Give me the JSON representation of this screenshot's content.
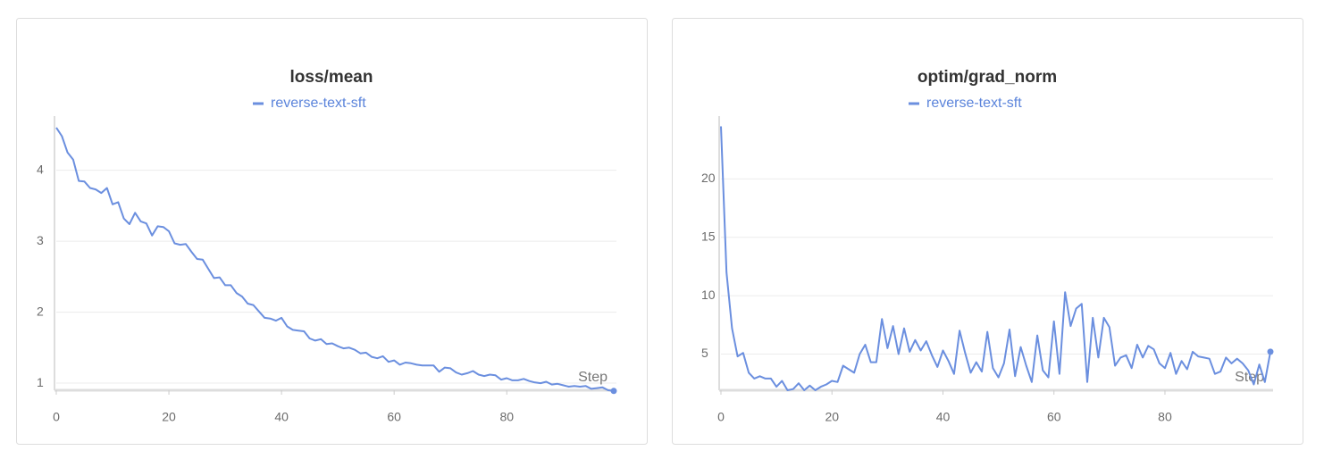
{
  "chart_data": [
    {
      "type": "line",
      "title": "loss/mean",
      "x_label": "Step",
      "x": [
        0,
        1,
        2,
        3,
        4,
        5,
        6,
        7,
        8,
        9,
        10,
        11,
        12,
        13,
        14,
        15,
        16,
        17,
        18,
        19,
        20,
        21,
        22,
        23,
        24,
        25,
        26,
        27,
        28,
        29,
        30,
        31,
        32,
        33,
        34,
        35,
        36,
        37,
        38,
        39,
        40,
        41,
        42,
        43,
        44,
        45,
        46,
        47,
        48,
        49,
        50,
        51,
        52,
        53,
        54,
        55,
        56,
        57,
        58,
        59,
        60,
        61,
        62,
        63,
        64,
        65,
        66,
        67,
        68,
        69,
        70,
        71,
        72,
        73,
        74,
        75,
        76,
        77,
        78,
        79,
        80,
        81,
        82,
        83,
        84,
        85,
        86,
        87,
        88,
        89,
        90,
        91,
        92,
        93,
        94,
        95,
        96,
        97,
        98,
        99
      ],
      "series": [
        {
          "name": "reverse-text-sft",
          "color": "#6b8fdf",
          "values": [
            4.6,
            4.48,
            4.25,
            4.15,
            3.85,
            3.84,
            3.75,
            3.73,
            3.68,
            3.75,
            3.52,
            3.55,
            3.32,
            3.24,
            3.4,
            3.28,
            3.25,
            3.08,
            3.21,
            3.2,
            3.14,
            2.97,
            2.95,
            2.96,
            2.85,
            2.75,
            2.74,
            2.61,
            2.48,
            2.49,
            2.38,
            2.38,
            2.27,
            2.22,
            2.12,
            2.1,
            2.01,
            1.92,
            1.91,
            1.88,
            1.92,
            1.8,
            1.75,
            1.74,
            1.73,
            1.63,
            1.6,
            1.62,
            1.55,
            1.56,
            1.52,
            1.49,
            1.5,
            1.47,
            1.42,
            1.43,
            1.37,
            1.35,
            1.38,
            1.3,
            1.32,
            1.26,
            1.29,
            1.28,
            1.26,
            1.25,
            1.25,
            1.25,
            1.16,
            1.22,
            1.21,
            1.15,
            1.12,
            1.14,
            1.17,
            1.12,
            1.1,
            1.12,
            1.11,
            1.05,
            1.07,
            1.04,
            1.04,
            1.06,
            1.03,
            1.01,
            1.0,
            1.02,
            0.98,
            0.99,
            0.97,
            0.95,
            0.96,
            0.95,
            0.96,
            0.92,
            0.93,
            0.94,
            0.9,
            0.89
          ]
        }
      ],
      "xlim": [
        0,
        99
      ],
      "xticks": [
        0,
        20,
        40,
        60,
        80
      ],
      "ylim": [
        0.9,
        4.7
      ],
      "yticks": [
        1,
        2,
        3,
        4
      ],
      "grid": true
    },
    {
      "type": "line",
      "title": "optim/grad_norm",
      "x_label": "Step",
      "x": [
        0,
        1,
        2,
        3,
        4,
        5,
        6,
        7,
        8,
        9,
        10,
        11,
        12,
        13,
        14,
        15,
        16,
        17,
        18,
        19,
        20,
        21,
        22,
        23,
        24,
        25,
        26,
        27,
        28,
        29,
        30,
        31,
        32,
        33,
        34,
        35,
        36,
        37,
        38,
        39,
        40,
        41,
        42,
        43,
        44,
        45,
        46,
        47,
        48,
        49,
        50,
        51,
        52,
        53,
        54,
        55,
        56,
        57,
        58,
        59,
        60,
        61,
        62,
        63,
        64,
        65,
        66,
        67,
        68,
        69,
        70,
        71,
        72,
        73,
        74,
        75,
        76,
        77,
        78,
        79,
        80,
        81,
        82,
        83,
        84,
        85,
        86,
        87,
        88,
        89,
        90,
        91,
        92,
        93,
        94,
        95,
        96,
        97,
        98,
        99
      ],
      "series": [
        {
          "name": "reverse-text-sft",
          "color": "#6b8fdf",
          "values": [
            24.5,
            12,
            7.2,
            4.8,
            5.1,
            3.4,
            2.9,
            3.1,
            2.9,
            2.9,
            2.2,
            2.7,
            1.9,
            2.0,
            2.5,
            1.9,
            2.3,
            1.9,
            2.2,
            2.4,
            2.7,
            2.6,
            4.0,
            3.7,
            3.4,
            5.0,
            5.8,
            4.3,
            4.3,
            8.0,
            5.5,
            7.4,
            5.0,
            7.2,
            5.2,
            6.2,
            5.3,
            6.1,
            4.9,
            3.9,
            5.3,
            4.4,
            3.3,
            7.0,
            5.1,
            3.4,
            4.3,
            3.5,
            6.9,
            3.8,
            3.0,
            4.2,
            7.1,
            3.1,
            5.6,
            4.0,
            2.6,
            6.6,
            3.6,
            3.0,
            7.8,
            3.3,
            10.3,
            7.4,
            8.9,
            9.3,
            2.6,
            8.1,
            4.7,
            8.1,
            7.3,
            4.0,
            4.7,
            4.9,
            3.8,
            5.8,
            4.7,
            5.7,
            5.4,
            4.2,
            3.8,
            5.1,
            3.3,
            4.4,
            3.7,
            5.2,
            4.8,
            4.7,
            4.6,
            3.3,
            3.5,
            4.7,
            4.2,
            4.6,
            4.2,
            3.6,
            2.4,
            4.1,
            2.6,
            5.2
          ]
        }
      ],
      "xlim": [
        0,
        99
      ],
      "xticks": [
        0,
        20,
        40,
        60,
        80
      ],
      "ylim": [
        1.9,
        25
      ],
      "yticks": [
        5,
        10,
        15,
        20
      ],
      "grid": true
    }
  ]
}
